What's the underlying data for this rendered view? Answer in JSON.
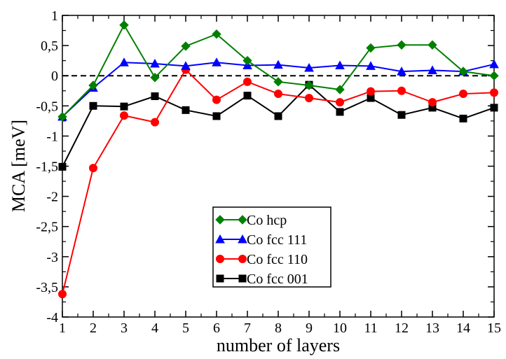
{
  "chart_data": {
    "type": "line",
    "title": "",
    "xlabel": "number of layers",
    "ylabel": "MCA [meV]",
    "xlim": [
      1,
      15
    ],
    "ylim": [
      -4,
      1
    ],
    "x": [
      1,
      2,
      3,
      4,
      5,
      6,
      7,
      8,
      9,
      10,
      11,
      12,
      13,
      14,
      15
    ],
    "x_tick_labels": [
      "1",
      "2",
      "3",
      "4",
      "5",
      "6",
      "7",
      "8",
      "9",
      "10",
      "11",
      "12",
      "13",
      "14",
      "15"
    ],
    "y_ticks": [
      1,
      0.5,
      0,
      -0.5,
      -1,
      -1.5,
      -2,
      -2.5,
      -3,
      -3.5,
      -4
    ],
    "y_tick_labels": [
      "1",
      "0,5",
      "0",
      "-0,5",
      "-1",
      "-1,5",
      "-2",
      "-2,5",
      "-3",
      "-3,5",
      "-4"
    ],
    "reference_line": {
      "y": 0,
      "style": "dashed",
      "color": "#000000"
    },
    "legend_position": "center-bottom",
    "grid": false,
    "series": [
      {
        "name": "Co hcp",
        "color": "#008000",
        "marker": "diamond",
        "values": [
          -0.68,
          -0.16,
          0.84,
          -0.03,
          0.49,
          0.69,
          0.25,
          -0.1,
          -0.16,
          -0.23,
          0.46,
          0.51,
          0.51,
          0.07,
          0.0
        ]
      },
      {
        "name": "Co fcc 111",
        "color": "#0000ff",
        "marker": "triangle",
        "values": [
          -0.68,
          -0.2,
          0.22,
          0.2,
          0.16,
          0.22,
          0.17,
          0.18,
          0.13,
          0.17,
          0.16,
          0.07,
          0.09,
          0.07,
          0.19
        ]
      },
      {
        "name": "Co fcc 110",
        "color": "#ff0000",
        "marker": "circle",
        "values": [
          -3.62,
          -1.53,
          -0.66,
          -0.77,
          0.1,
          -0.4,
          -0.1,
          -0.3,
          -0.37,
          -0.44,
          -0.26,
          -0.25,
          -0.44,
          -0.3,
          -0.28
        ]
      },
      {
        "name": "Co fcc 001",
        "color": "#000000",
        "marker": "square",
        "values": [
          -1.51,
          -0.5,
          -0.51,
          -0.34,
          -0.57,
          -0.67,
          -0.33,
          -0.67,
          -0.15,
          -0.6,
          -0.37,
          -0.65,
          -0.53,
          -0.71,
          -0.53
        ]
      }
    ]
  }
}
